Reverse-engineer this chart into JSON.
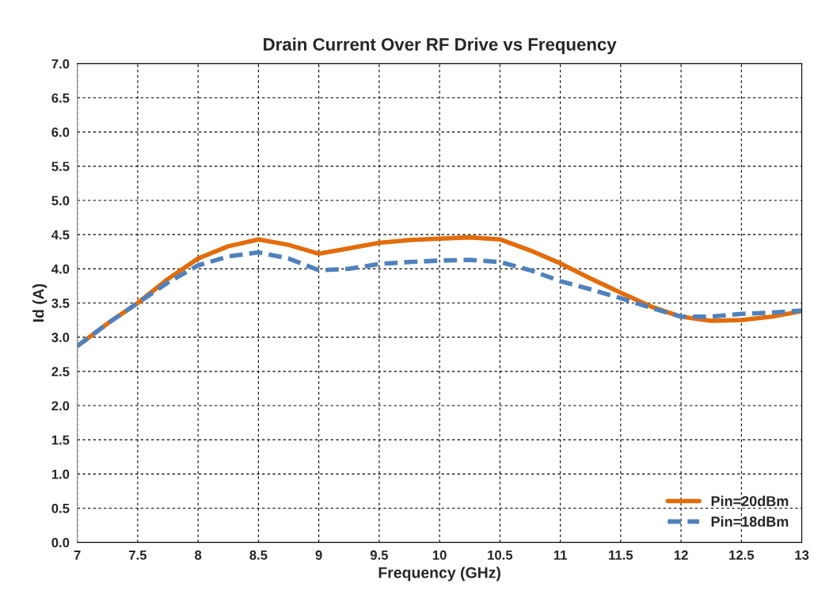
{
  "chart_data": {
    "type": "line",
    "title": "Drain Current Over RF Drive vs Frequency",
    "xlabel": "Frequency (GHz)",
    "ylabel": "Id (A)",
    "x": [
      7,
      7.25,
      7.5,
      7.75,
      8,
      8.25,
      8.5,
      8.75,
      9,
      9.25,
      9.5,
      9.75,
      10,
      10.25,
      10.5,
      10.75,
      11,
      11.25,
      11.5,
      11.75,
      12,
      12.25,
      12.5,
      12.75,
      13
    ],
    "series": [
      {
        "name": "Pin=20dBm",
        "color": "#e36c0a",
        "line_style": "solid",
        "values": [
          2.87,
          3.2,
          3.5,
          3.85,
          4.15,
          4.33,
          4.43,
          4.35,
          4.22,
          4.3,
          4.38,
          4.42,
          4.44,
          4.46,
          4.43,
          4.27,
          4.08,
          3.86,
          3.65,
          3.45,
          3.3,
          3.24,
          3.25,
          3.3,
          3.38
        ]
      },
      {
        "name": "Pin=18dBm",
        "color": "#4f81bd",
        "line_style": "dashed",
        "values": [
          2.87,
          3.2,
          3.5,
          3.8,
          4.05,
          4.18,
          4.24,
          4.15,
          3.98,
          4.0,
          4.07,
          4.1,
          4.12,
          4.13,
          4.1,
          3.98,
          3.82,
          3.7,
          3.57,
          3.43,
          3.3,
          3.3,
          3.34,
          3.36,
          3.39
        ]
      }
    ],
    "xlim": [
      7,
      13
    ],
    "xticks": [
      7,
      7.5,
      8,
      8.5,
      9,
      9.5,
      10,
      10.5,
      11,
      11.5,
      12,
      12.5,
      13
    ],
    "ylim": [
      0,
      7
    ],
    "yticks": [
      {
        "value": 0,
        "label": "0.0"
      },
      0.5,
      {
        "value": 1,
        "label": "1.0"
      },
      1.5,
      {
        "value": 2,
        "label": "2.0"
      },
      2.5,
      {
        "value": 3,
        "label": "3.0"
      },
      3.5,
      {
        "value": 4,
        "label": "4.0"
      },
      4.5,
      {
        "value": 5,
        "label": "5.0"
      },
      5.5,
      {
        "value": 6,
        "label": "6.0"
      },
      6.5,
      {
        "value": 7,
        "label": "7.0"
      }
    ],
    "grid": true,
    "legend": "bottom right",
    "marker": "none"
  }
}
